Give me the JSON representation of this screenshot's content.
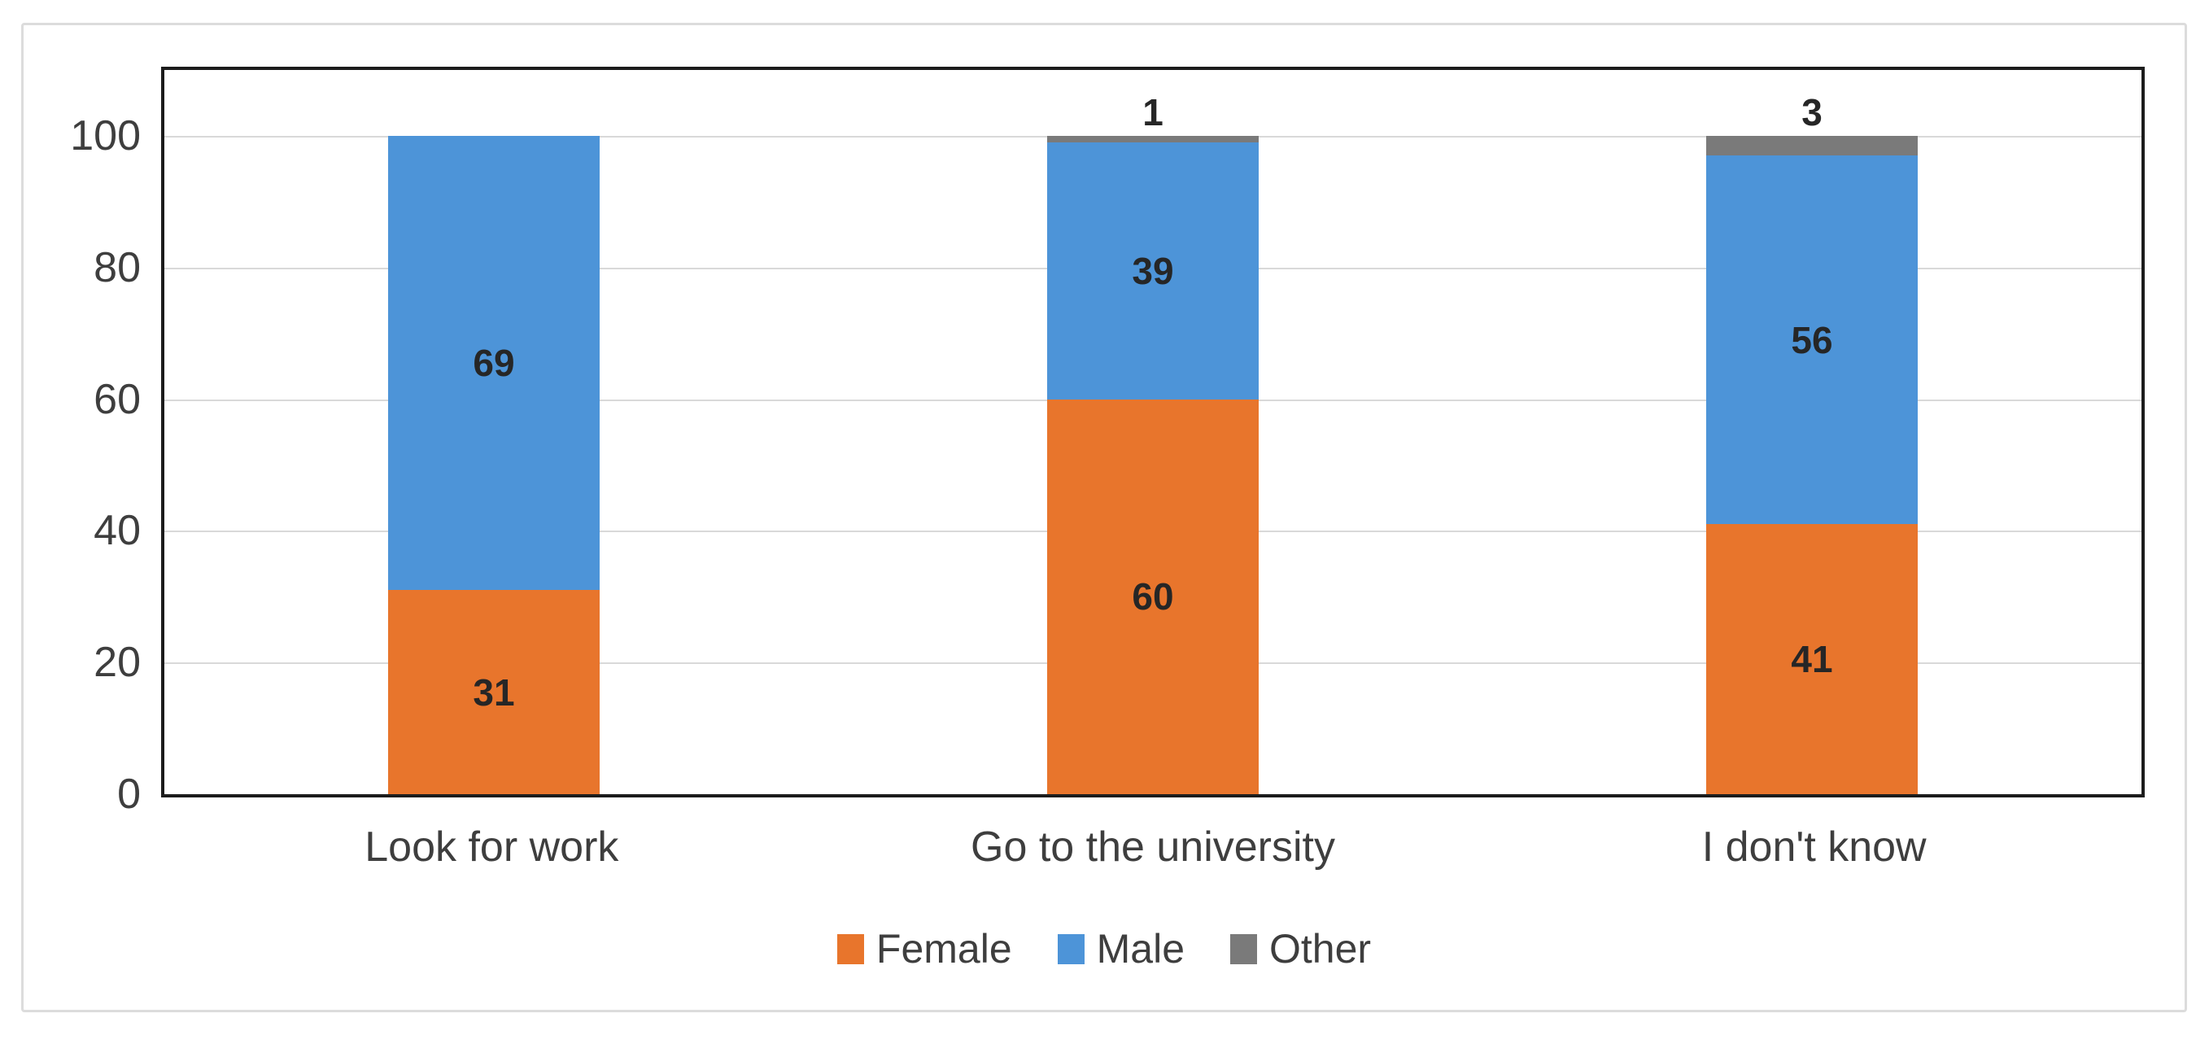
{
  "chart_data": {
    "type": "bar",
    "stacked": true,
    "title": "",
    "xlabel": "",
    "ylabel": "",
    "categories": [
      "Look for work",
      "Go to the university",
      "I don't know"
    ],
    "series": [
      {
        "name": "Female",
        "color": "#E8752C",
        "values": [
          31,
          60,
          41
        ]
      },
      {
        "name": "Male",
        "color": "#4D94D8",
        "values": [
          69,
          39,
          56
        ]
      },
      {
        "name": "Other",
        "color": "#7A7A7A",
        "values": [
          0,
          1,
          3
        ]
      }
    ],
    "yticks": [
      0,
      20,
      40,
      60,
      80,
      100
    ],
    "ylim": [
      0,
      110
    ],
    "grid": true,
    "legend_position": "bottom"
  },
  "styles": {
    "text_color": "#3E3E3E",
    "data_label_color": "#262626",
    "gridline_color": "#D9D9D9",
    "plot_border_color": "#1C1C1C",
    "card_border_color": "#DCDCDC",
    "background": "#FFFFFF"
  }
}
